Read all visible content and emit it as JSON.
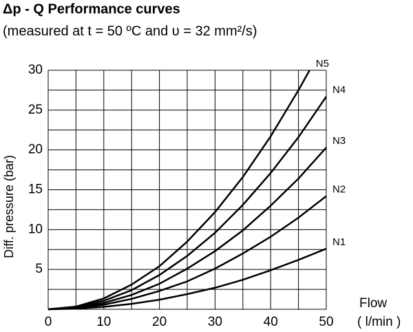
{
  "chart_data": {
    "type": "line",
    "title": "Δp - Q Performance curves",
    "subtitle": "(measured at t = 50 ºC and υ = 32 mm²/s)",
    "ylabel": "Diff. pressure (bar)",
    "xlabel": "Flow",
    "xunit": "( l/min )",
    "xlim": [
      0,
      50
    ],
    "ylim": [
      0,
      30
    ],
    "xticks": [
      0,
      10,
      20,
      30,
      40,
      50
    ],
    "yticks": [
      5,
      10,
      15,
      20,
      25,
      30
    ],
    "xgrid": [
      0,
      5,
      10,
      15,
      20,
      25,
      30,
      35,
      40,
      45,
      50
    ],
    "ygrid": [
      0,
      2.5,
      5,
      7.5,
      10,
      12.5,
      15,
      17.5,
      20,
      22.5,
      25,
      27.5,
      30
    ],
    "grid": true,
    "series": [
      {
        "name": "N1",
        "color": "#000000",
        "x": [
          0,
          5,
          10,
          15,
          20,
          25,
          30,
          35,
          40,
          45,
          50
        ],
        "values": [
          0,
          0.08,
          0.3,
          0.68,
          1.2,
          1.9,
          2.7,
          3.7,
          4.9,
          6.2,
          7.6
        ]
      },
      {
        "name": "N2",
        "color": "#000000",
        "x": [
          0,
          5,
          10,
          15,
          20,
          25,
          30,
          35,
          40,
          45,
          50
        ],
        "values": [
          0,
          0.14,
          0.57,
          1.3,
          2.3,
          3.5,
          5.1,
          7.0,
          9.1,
          11.5,
          14.2
        ]
      },
      {
        "name": "N3",
        "color": "#000000",
        "x": [
          0,
          5,
          10,
          15,
          20,
          25,
          30,
          35,
          40,
          45,
          50
        ],
        "values": [
          0,
          0.2,
          0.8,
          1.8,
          3.2,
          5.1,
          7.3,
          9.9,
          13.0,
          16.4,
          20.3
        ]
      },
      {
        "name": "N4",
        "color": "#000000",
        "x": [
          0,
          5,
          10,
          15,
          20,
          25,
          30,
          35,
          40,
          45,
          50
        ],
        "values": [
          0,
          0.27,
          1.07,
          2.4,
          4.3,
          6.7,
          9.6,
          13.1,
          17.1,
          21.6,
          26.7
        ]
      },
      {
        "name": "N5",
        "color": "#000000",
        "x": [
          0,
          5,
          10,
          15,
          20,
          25,
          30,
          35,
          40,
          45,
          47
        ],
        "values": [
          0,
          0.34,
          1.36,
          3.1,
          5.4,
          8.5,
          12.2,
          16.6,
          21.7,
          27.5,
          30
        ]
      }
    ]
  }
}
